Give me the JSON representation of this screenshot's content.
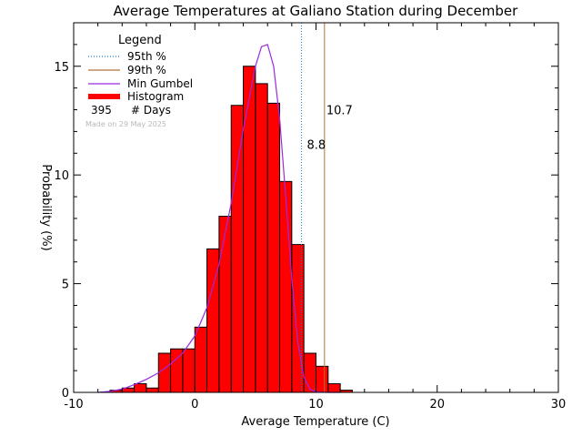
{
  "chart_data": {
    "type": "bar",
    "title": "Average Temperatures at Galiano Station during December",
    "xlabel": "Average Temperature (C)",
    "ylabel": "Probability (%)",
    "xlim": [
      -10,
      30
    ],
    "ylim": [
      0,
      17
    ],
    "xticks": [
      -10,
      0,
      10,
      20,
      30
    ],
    "yticks": [
      0,
      5,
      10,
      15
    ],
    "bin_width": 1,
    "histogram": {
      "bin_starts": [
        -7,
        -6,
        -5,
        -4,
        -3,
        -2,
        -1,
        0,
        1,
        2,
        3,
        4,
        5,
        6,
        7,
        8,
        9,
        10,
        11,
        12
      ],
      "values": [
        0.1,
        0.2,
        0.4,
        0.2,
        1.8,
        2.0,
        2.0,
        3.0,
        6.6,
        8.1,
        13.2,
        15.0,
        14.2,
        13.3,
        9.7,
        6.8,
        1.8,
        1.2,
        0.4,
        0.1
      ]
    },
    "gumbel_curve": {
      "x": [
        -8,
        -7,
        -6,
        -5,
        -4,
        -3,
        -2,
        -1,
        0,
        1,
        2,
        3,
        4,
        5,
        5.5,
        6,
        6.5,
        7,
        7.5,
        8,
        8.5,
        9,
        9.5,
        10,
        11,
        12
      ],
      "y": [
        0.0,
        0.05,
        0.15,
        0.35,
        0.6,
        0.9,
        1.3,
        1.8,
        2.6,
        3.9,
        5.9,
        8.7,
        12.1,
        15.0,
        15.9,
        16.0,
        15.0,
        12.6,
        9.0,
        5.2,
        2.3,
        0.7,
        0.15,
        0.02,
        0.0,
        0.0
      ]
    },
    "lines": {
      "p95": {
        "value": 8.8,
        "label": "8.8",
        "color": "#1a7fd4"
      },
      "p99": {
        "value": 10.7,
        "label": "10.7",
        "color": "#b0733a"
      }
    },
    "colors": {
      "histogram": "#ff0000",
      "gumbel": "#9a2be0"
    },
    "legend": {
      "title": "Legend",
      "placement": "top-left",
      "items": [
        {
          "label": "95th %",
          "style": "dotted",
          "color": "#1a7fd4"
        },
        {
          "label": "99th %",
          "style": "solid",
          "color": "#b0733a"
        },
        {
          "label": "Min Gumbel",
          "style": "solid",
          "color": "#9a2be0"
        },
        {
          "label": "Histogram",
          "style": "thick",
          "color": "#ff0000"
        }
      ],
      "days_count": "395",
      "days_label": "# Days"
    },
    "made_on": "Made on 29 May 2025"
  }
}
